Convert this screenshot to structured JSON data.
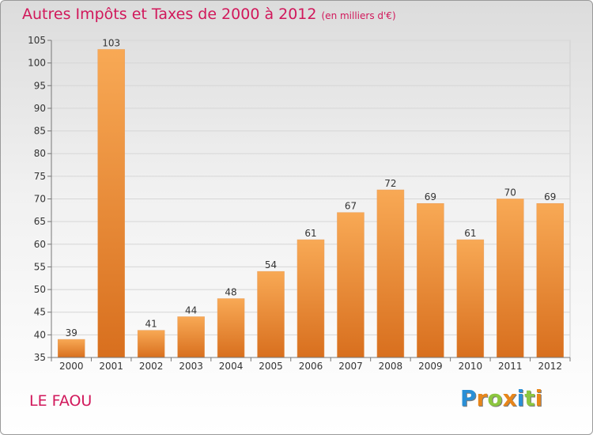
{
  "title": "Autres Impôts et Taxes de 2000 à 2012",
  "subtitle": "(en milliers d'€)",
  "commune": "LE FAOU",
  "logo": {
    "letters": [
      "P",
      "r",
      "o",
      "x",
      "i",
      "t",
      "i"
    ],
    "colors": [
      "#2a8fd6",
      "#e8861a",
      "#8cc63f",
      "#e8861a",
      "#2a8fd6",
      "#8cc63f",
      "#e8861a"
    ]
  },
  "colors": {
    "title": "#d1185b",
    "bar_light": "#f8a955",
    "bar_dark": "#d86f1e"
  },
  "chart_data": {
    "type": "bar",
    "title": "Autres Impôts et Taxes de 2000 à 2012",
    "subtitle": "(en milliers d'€)",
    "categories": [
      "2000",
      "2001",
      "2002",
      "2003",
      "2004",
      "2005",
      "2006",
      "2007",
      "2008",
      "2009",
      "2010",
      "2011",
      "2012"
    ],
    "values": [
      39,
      103,
      41,
      44,
      48,
      54,
      61,
      67,
      72,
      69,
      61,
      70,
      69
    ],
    "ylim": [
      35,
      105
    ],
    "yticks": [
      35,
      40,
      45,
      50,
      55,
      60,
      65,
      70,
      75,
      80,
      85,
      90,
      95,
      100,
      105
    ],
    "grid": true,
    "legend": "none"
  }
}
